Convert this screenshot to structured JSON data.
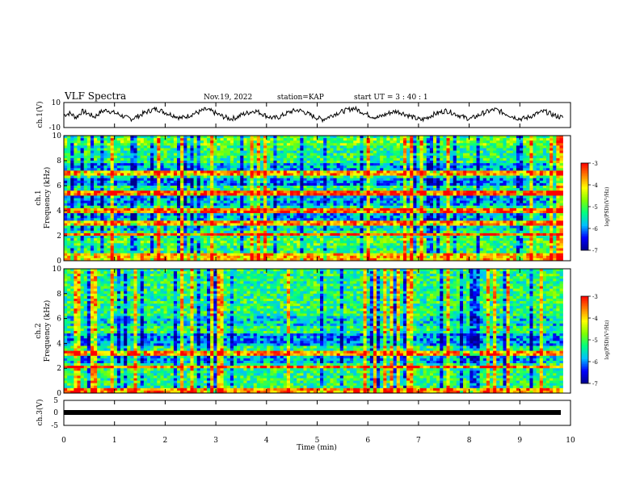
{
  "header": {
    "title": "VLF Spectra",
    "date": "Nov.19, 2022",
    "station": "station=KAP",
    "start": "start  UT =  3 : 40 : 1"
  },
  "chart_data": [
    {
      "type": "line",
      "ylabel": "ch.1(V)",
      "ylim": [
        -10,
        10
      ],
      "yticks": [
        "10",
        "-10"
      ],
      "x_range_min": [
        0,
        9.85
      ],
      "trace_color": "#000000",
      "series": [
        {
          "name": "",
          "values": [
            0,
            1.5,
            -2,
            3,
            1,
            -1.5,
            2.5,
            4,
            2,
            0.5,
            -2,
            -3,
            -1,
            1.5,
            3.5,
            5,
            3,
            1,
            -0.5,
            -2.5,
            -1,
            1,
            2.5,
            4.5,
            3,
            0.5,
            -1.5,
            -3,
            -2,
            0.5,
            2,
            3.5,
            1.5,
            -1,
            -2.5,
            -1.5,
            1,
            3,
            4,
            2.5,
            0,
            -2,
            -3.5,
            -1.5,
            1,
            2.5,
            4,
            5.5,
            3.5,
            1,
            -1,
            -2,
            0,
            2,
            3,
            1.5,
            -0.5,
            -2.5,
            -4,
            -2,
            0.5,
            2,
            3.5,
            2,
            0,
            -2,
            -3,
            -1,
            1.5,
            3,
            4.5,
            2.5,
            0.5,
            -1.5,
            -3,
            -2.5,
            -0.5,
            1.5,
            3,
            1,
            -1,
            -2
          ]
        }
      ]
    },
    {
      "type": "heatmap",
      "ylabel": "ch.1\nFrequency (kHz)",
      "ylim": [
        0,
        10
      ],
      "yticks": [
        "0",
        "2",
        "4",
        "6",
        "8",
        "10"
      ],
      "x_range_min": [
        0,
        9.85
      ],
      "colorbar": {
        "label": "log(PSD)(V²/Hz)",
        "range": [
          -7,
          -3
        ],
        "ticks": [
          "-3",
          "-4",
          "-5",
          "-6",
          "-7"
        ]
      }
    },
    {
      "type": "heatmap",
      "ylabel": "ch.2\nFrequency (kHz)",
      "ylim": [
        0,
        10
      ],
      "yticks": [
        "0",
        "2",
        "4",
        "6",
        "8",
        "10"
      ],
      "x_range_min": [
        0,
        9.85
      ],
      "colorbar": {
        "label": "log(PSD)(V²/Hz)",
        "range": [
          -7,
          -3
        ],
        "ticks": [
          "-3",
          "-4",
          "-5",
          "-6",
          "-7"
        ]
      }
    },
    {
      "type": "line",
      "ylabel": "ch.3(V)",
      "ylim": [
        -5,
        5
      ],
      "yticks": [
        "5",
        "0",
        "-5"
      ],
      "x_range_min": [
        0,
        9.85
      ],
      "trace_color": "#000000",
      "series": [
        {
          "name": "",
          "values": [
            0,
            0
          ]
        }
      ]
    }
  ],
  "x_axis": {
    "label": "Time (min)",
    "ticks": [
      "0",
      "1",
      "2",
      "3",
      "4",
      "5",
      "6",
      "7",
      "8",
      "9",
      "10"
    ]
  },
  "colors": {
    "colormap": [
      "#00008b",
      "#0000ff",
      "#00bfff",
      "#00ff80",
      "#80ff00",
      "#ffff00",
      "#ff8000",
      "#ff0000"
    ]
  }
}
